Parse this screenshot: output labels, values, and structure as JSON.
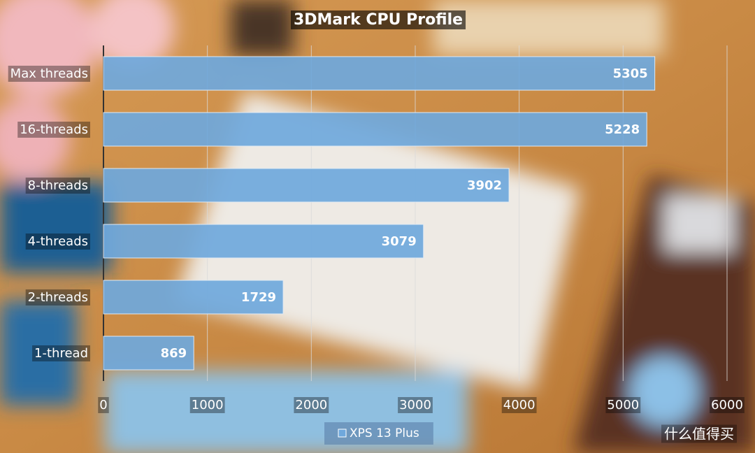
{
  "chart_data": {
    "type": "bar",
    "orientation": "horizontal",
    "title": "3DMark CPU Profile",
    "categories": [
      "Max threads",
      "16-threads",
      "8-threads",
      "4-threads",
      "2-threads",
      "1-thread"
    ],
    "series": [
      {
        "name": "XPS 13 Plus",
        "color": "#6fa8dc",
        "values": [
          5305,
          5228,
          3902,
          3079,
          1729,
          869
        ]
      }
    ],
    "xlim": [
      0,
      6000
    ],
    "xticks": [
      0,
      1000,
      2000,
      3000,
      4000,
      5000,
      6000
    ],
    "grid": true,
    "legend": "bottom",
    "watermark": "什么值得买"
  }
}
